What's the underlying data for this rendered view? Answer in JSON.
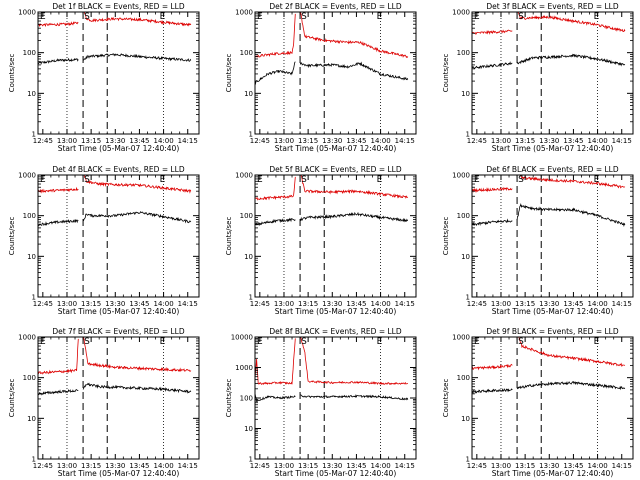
{
  "figure": {
    "colors": {
      "events": "#000000",
      "lld": "#dd0000",
      "axis": "#000000"
    },
    "shared": {
      "xlabel": "Start Time (05-Mar-07 12:40:40)",
      "ylabel": "Counts/sec",
      "xticks": [
        "12:45",
        "13:00",
        "13:15",
        "13:30",
        "13:45",
        "14:00",
        "14:15"
      ],
      "xtick_minutes": [
        0,
        15,
        30,
        45,
        60,
        75,
        90
      ],
      "xlim_minutes_after_1245": [
        -3,
        97
      ],
      "yscale": "log",
      "marker_S": "S",
      "marker_E": "E",
      "dotted_lines_at": [
        "13:00",
        "14:00"
      ],
      "dashed_lines_at": [
        "13:10",
        "13:25"
      ],
      "S_at": "13:10",
      "E_at": "14:00",
      "grid": false
    }
  },
  "chart_data": [
    {
      "type": "line",
      "title": "Det 1f BLACK = Events, RED = LLD",
      "ylim": [
        1,
        1000
      ],
      "yticks": [
        "1",
        "10",
        "100",
        "1000"
      ],
      "series": [
        {
          "name": "Events",
          "color": "#000000",
          "pre": [
            [
              -3,
              55
            ],
            [
              10,
              65
            ],
            [
              22,
              68
            ]
          ],
          "post": [
            [
              25,
              65
            ],
            [
              28,
              80
            ],
            [
              45,
              90
            ],
            [
              60,
              80
            ],
            [
              75,
              72
            ],
            [
              92,
              65
            ]
          ]
        },
        {
          "name": "LLD",
          "color": "#dd0000",
          "pre": [
            [
              -3,
              480
            ],
            [
              15,
              500
            ],
            [
              22,
              540
            ]
          ],
          "post": [
            [
              25,
              1200
            ],
            [
              27,
              700
            ],
            [
              30,
              620
            ],
            [
              45,
              680
            ],
            [
              60,
              650
            ],
            [
              75,
              560
            ],
            [
              92,
              480
            ]
          ]
        }
      ]
    },
    {
      "type": "line",
      "title": "Det 2f BLACK = Events, RED = LLD",
      "ylim": [
        1,
        1000
      ],
      "yticks": [
        "1",
        "10",
        "100",
        "1000"
      ],
      "series": [
        {
          "name": "Events",
          "color": "#000000",
          "pre": [
            [
              -3,
              18
            ],
            [
              5,
              30
            ],
            [
              12,
              35
            ],
            [
              20,
              30
            ],
            [
              22,
              60
            ]
          ],
          "post": [
            [
              25,
              55
            ],
            [
              30,
              48
            ],
            [
              45,
              50
            ],
            [
              55,
              45
            ],
            [
              62,
              55
            ],
            [
              75,
              30
            ],
            [
              92,
              22
            ]
          ]
        },
        {
          "name": "LLD",
          "color": "#dd0000",
          "pre": [
            [
              -3,
              80
            ],
            [
              10,
              95
            ],
            [
              20,
              100
            ],
            [
              21,
              150
            ],
            [
              22,
              900
            ]
          ],
          "post": [
            [
              25,
              1100
            ],
            [
              28,
              250
            ],
            [
              40,
              200
            ],
            [
              55,
              180
            ],
            [
              62,
              180
            ],
            [
              75,
              110
            ],
            [
              92,
              80
            ]
          ]
        }
      ]
    },
    {
      "type": "line",
      "title": "Det 3f BLACK = Events, RED = LLD",
      "ylim": [
        1,
        1000
      ],
      "yticks": [
        "1",
        "10",
        "100",
        "1000"
      ],
      "series": [
        {
          "name": "Events",
          "color": "#000000",
          "pre": [
            [
              -3,
              42
            ],
            [
              10,
              48
            ],
            [
              22,
              55
            ]
          ],
          "post": [
            [
              25,
              55
            ],
            [
              35,
              75
            ],
            [
              45,
              78
            ],
            [
              60,
              85
            ],
            [
              75,
              70
            ],
            [
              92,
              50
            ]
          ]
        },
        {
          "name": "LLD",
          "color": "#dd0000",
          "pre": [
            [
              -3,
              300
            ],
            [
              10,
              320
            ],
            [
              22,
              340
            ]
          ],
          "post": [
            [
              25,
              1200
            ],
            [
              27,
              700
            ],
            [
              45,
              750
            ],
            [
              60,
              600
            ],
            [
              75,
              480
            ],
            [
              92,
              340
            ]
          ]
        }
      ]
    },
    {
      "type": "line",
      "title": "Det 4f BLACK = Events, RED = LLD",
      "ylim": [
        1,
        1000
      ],
      "yticks": [
        "1",
        "10",
        "100",
        "1000"
      ],
      "series": [
        {
          "name": "Events",
          "color": "#000000",
          "pre": [
            [
              -3,
              60
            ],
            [
              10,
              70
            ],
            [
              22,
              75
            ]
          ],
          "post": [
            [
              25,
              70
            ],
            [
              27,
              110
            ],
            [
              30,
              100
            ],
            [
              45,
              100
            ],
            [
              60,
              120
            ],
            [
              75,
              95
            ],
            [
              92,
              70
            ]
          ]
        },
        {
          "name": "LLD",
          "color": "#dd0000",
          "pre": [
            [
              -3,
              400
            ],
            [
              10,
              420
            ],
            [
              22,
              450
            ]
          ],
          "post": [
            [
              25,
              1200
            ],
            [
              27,
              700
            ],
            [
              35,
              600
            ],
            [
              45,
              580
            ],
            [
              60,
              560
            ],
            [
              75,
              480
            ],
            [
              92,
              400
            ]
          ]
        }
      ]
    },
    {
      "type": "line",
      "title": "Det 5f BLACK = Events, RED = LLD",
      "ylim": [
        1,
        1000
      ],
      "yticks": [
        "1",
        "10",
        "100",
        "1000"
      ],
      "series": [
        {
          "name": "Events",
          "color": "#000000",
          "pre": [
            [
              -3,
              60
            ],
            [
              10,
              75
            ],
            [
              22,
              80
            ]
          ],
          "post": [
            [
              25,
              80
            ],
            [
              30,
              90
            ],
            [
              45,
              95
            ],
            [
              60,
              110
            ],
            [
              75,
              90
            ],
            [
              92,
              75
            ]
          ]
        },
        {
          "name": "LLD",
          "color": "#dd0000",
          "pre": [
            [
              -3,
              260
            ],
            [
              10,
              280
            ],
            [
              21,
              300
            ],
            [
              22,
              900
            ]
          ],
          "post": [
            [
              25,
              1200
            ],
            [
              28,
              400
            ],
            [
              45,
              380
            ],
            [
              60,
              400
            ],
            [
              75,
              340
            ],
            [
              92,
              280
            ]
          ]
        }
      ]
    },
    {
      "type": "line",
      "title": "Det 6f BLACK = Events, RED = LLD",
      "ylim": [
        1,
        1000
      ],
      "yticks": [
        "1",
        "10",
        "100",
        "1000"
      ],
      "series": [
        {
          "name": "Events",
          "color": "#000000",
          "pre": [
            [
              -3,
              60
            ],
            [
              10,
              70
            ],
            [
              22,
              75
            ]
          ],
          "post": [
            [
              25,
              80
            ],
            [
              27,
              180
            ],
            [
              35,
              150
            ],
            [
              45,
              140
            ],
            [
              60,
              140
            ],
            [
              75,
              100
            ],
            [
              92,
              60
            ]
          ]
        },
        {
          "name": "LLD",
          "color": "#dd0000",
          "pre": [
            [
              -3,
              420
            ],
            [
              10,
              440
            ],
            [
              22,
              460
            ]
          ],
          "post": [
            [
              25,
              1200
            ],
            [
              28,
              850
            ],
            [
              45,
              750
            ],
            [
              60,
              700
            ],
            [
              75,
              620
            ],
            [
              92,
              500
            ]
          ]
        }
      ]
    },
    {
      "type": "line",
      "title": "Det 7f BLACK = Events, RED = LLD",
      "ylim": [
        1,
        1000
      ],
      "yticks": [
        "1",
        "10",
        "100",
        "1000"
      ],
      "series": [
        {
          "name": "Events",
          "color": "#000000",
          "pre": [
            [
              -3,
              40
            ],
            [
              10,
              45
            ],
            [
              22,
              48
            ]
          ],
          "post": [
            [
              25,
              50
            ],
            [
              27,
              70
            ],
            [
              35,
              60
            ],
            [
              45,
              58
            ],
            [
              60,
              55
            ],
            [
              75,
              52
            ],
            [
              92,
              45
            ]
          ]
        },
        {
          "name": "LLD",
          "color": "#dd0000",
          "pre": [
            [
              -3,
              130
            ],
            [
              10,
              140
            ],
            [
              21,
              150
            ],
            [
              22,
              900
            ]
          ],
          "post": [
            [
              25,
              1200
            ],
            [
              28,
              220
            ],
            [
              45,
              180
            ],
            [
              60,
              170
            ],
            [
              75,
              160
            ],
            [
              92,
              150
            ]
          ]
        }
      ]
    },
    {
      "type": "line",
      "title": "Det 8f BLACK = Events, RED = LLD",
      "ylim": [
        1,
        10000
      ],
      "yticks": [
        "1",
        "10",
        "100",
        "1000",
        "10000"
      ],
      "series": [
        {
          "name": "Events",
          "color": "#000000",
          "pre": [
            [
              -3,
              150
            ],
            [
              -2,
              80
            ],
            [
              5,
              110
            ],
            [
              12,
              100
            ],
            [
              22,
              110
            ]
          ],
          "post": [
            [
              25,
              120
            ],
            [
              30,
              110
            ],
            [
              45,
              110
            ],
            [
              60,
              115
            ],
            [
              75,
              110
            ],
            [
              92,
              90
            ]
          ]
        },
        {
          "name": "LLD",
          "color": "#dd0000",
          "pre": [
            [
              -3,
              400
            ],
            [
              -2,
              2000
            ],
            [
              -1,
              300
            ],
            [
              5,
              300
            ],
            [
              12,
              320
            ],
            [
              20,
              300
            ],
            [
              22,
              9000
            ]
          ],
          "post": [
            [
              25,
              12000
            ],
            [
              28,
              3000
            ],
            [
              30,
              350
            ],
            [
              45,
              320
            ],
            [
              60,
              330
            ],
            [
              75,
              300
            ],
            [
              92,
              300
            ]
          ]
        }
      ]
    },
    {
      "type": "line",
      "title": "Det 9f BLACK = Events, RED = LLD",
      "ylim": [
        1,
        1000
      ],
      "yticks": [
        "1",
        "10",
        "100",
        "1000"
      ],
      "series": [
        {
          "name": "Events",
          "color": "#000000",
          "pre": [
            [
              -3,
              45
            ],
            [
              10,
              48
            ],
            [
              22,
              50
            ]
          ],
          "post": [
            [
              25,
              55
            ],
            [
              35,
              65
            ],
            [
              45,
              70
            ],
            [
              60,
              75
            ],
            [
              75,
              65
            ],
            [
              92,
              55
            ]
          ]
        },
        {
          "name": "LLD",
          "color": "#dd0000",
          "pre": [
            [
              -3,
              170
            ],
            [
              10,
              180
            ],
            [
              22,
              200
            ]
          ],
          "post": [
            [
              25,
              1200
            ],
            [
              28,
              600
            ],
            [
              45,
              350
            ],
            [
              60,
              300
            ],
            [
              75,
              250
            ],
            [
              92,
              200
            ]
          ]
        }
      ]
    }
  ]
}
